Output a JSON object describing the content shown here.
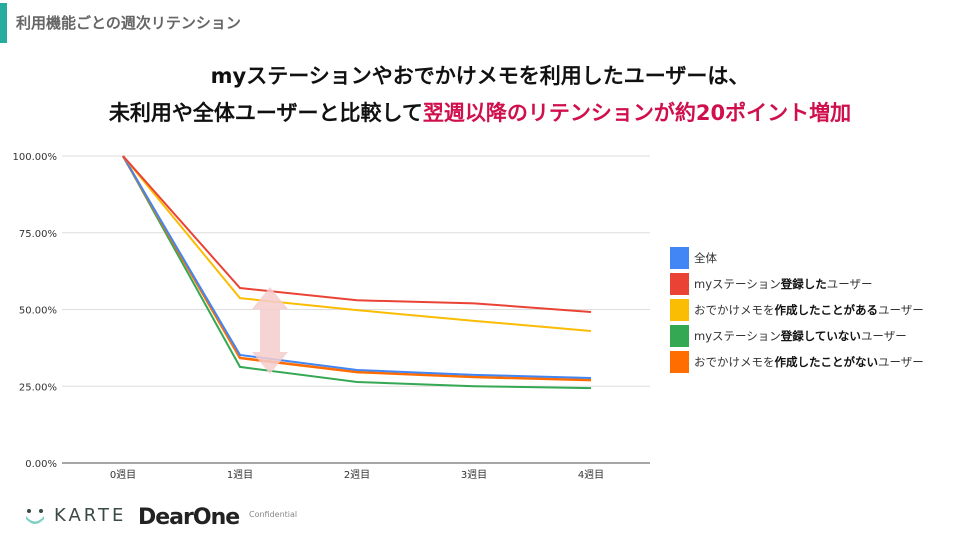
{
  "section_title": "利用機能ごとの週次リテンション",
  "headline": {
    "line1": "myステーションやおでかけメモを利用したユーザーは、",
    "line2_plain": "未利用や全体ユーザーと比較して",
    "line2_highlight": "翌週以降のリテンションが約20ポイント増加"
  },
  "colors": {
    "accent": "#26ab9c",
    "highlight": "#d0104c",
    "arrow": "#f4cccc"
  },
  "chart_data": {
    "type": "line",
    "categories": [
      "0週目",
      "1週目",
      "2週目",
      "3週目",
      "4週目"
    ],
    "y_ticks": [
      "0.00%",
      "25.00%",
      "50.00%",
      "75.00%",
      "100.00%"
    ],
    "ylim": [
      0,
      100
    ],
    "grid": true,
    "legend_position": "right",
    "series": [
      {
        "name": "全体",
        "parts": [
          [
            "全体",
            false
          ]
        ],
        "color": "#4285f4",
        "values": [
          100,
          35.2,
          30.3,
          28.7,
          27.7
        ]
      },
      {
        "name": "myステーション登録したユーザー",
        "parts": [
          [
            "myステーション",
            false
          ],
          [
            "登録した",
            true
          ],
          [
            "ユーザー",
            false
          ]
        ],
        "color": "#ea4335",
        "values": [
          100,
          57,
          53,
          52,
          49.2
        ]
      },
      {
        "name": "おでかけメモを作成したことがあるユーザー",
        "parts": [
          [
            "おでかけメモを",
            false
          ],
          [
            "作成したことがある",
            true
          ],
          [
            "ユーザー",
            false
          ]
        ],
        "color": "#fbbc04",
        "values": [
          100,
          53.7,
          49.8,
          46.3,
          43
        ]
      },
      {
        "name": "myステーション登録していないユーザー",
        "parts": [
          [
            "myステーション",
            false
          ],
          [
            "登録していない",
            true
          ],
          [
            "ユーザー",
            false
          ]
        ],
        "color": "#34a853",
        "values": [
          100,
          31.3,
          26.4,
          25,
          24.4
        ]
      },
      {
        "name": "おでかけメモを作成したことがないユーザー",
        "parts": [
          [
            "おでかけメモを",
            false
          ],
          [
            "作成したことがない",
            true
          ],
          [
            "ユーザー",
            false
          ]
        ],
        "color": "#ff6d01",
        "values": [
          100,
          34.2,
          29.6,
          28,
          27
        ]
      }
    ]
  },
  "footer": {
    "karte": "KARTE",
    "dearone": "DearOne",
    "confidential": "Confidential"
  }
}
